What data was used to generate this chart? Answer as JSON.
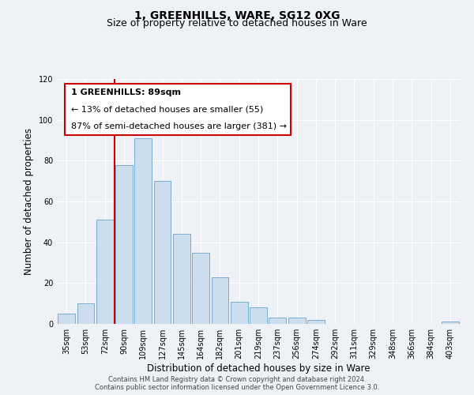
{
  "title": "1, GREENHILLS, WARE, SG12 0XG",
  "subtitle": "Size of property relative to detached houses in Ware",
  "xlabel": "Distribution of detached houses by size in Ware",
  "ylabel": "Number of detached properties",
  "bar_labels": [
    "35sqm",
    "53sqm",
    "72sqm",
    "90sqm",
    "109sqm",
    "127sqm",
    "145sqm",
    "164sqm",
    "182sqm",
    "201sqm",
    "219sqm",
    "237sqm",
    "256sqm",
    "274sqm",
    "292sqm",
    "311sqm",
    "329sqm",
    "348sqm",
    "366sqm",
    "384sqm",
    "403sqm"
  ],
  "bar_values": [
    5,
    10,
    51,
    78,
    91,
    70,
    44,
    35,
    23,
    11,
    8,
    3,
    3,
    2,
    0,
    0,
    0,
    0,
    0,
    0,
    1
  ],
  "bar_color": "#ccdded",
  "bar_edgecolor": "#7aadcf",
  "vline_x_index": 3,
  "vline_color": "#cc0000",
  "annotation_lines": [
    "1 GREENHILLS: 89sqm",
    "← 13% of detached houses are smaller (55)",
    "87% of semi-detached houses are larger (381) →"
  ],
  "ylim": [
    0,
    120
  ],
  "yticks": [
    0,
    20,
    40,
    60,
    80,
    100,
    120
  ],
  "footer_line1": "Contains HM Land Registry data © Crown copyright and database right 2024.",
  "footer_line2": "Contains public sector information licensed under the Open Government Licence 3.0.",
  "bg_color": "#eef2f7",
  "plot_bg_color": "#eef2f7",
  "title_fontsize": 10,
  "subtitle_fontsize": 9,
  "axis_label_fontsize": 8.5,
  "tick_fontsize": 7,
  "annotation_fontsize": 8,
  "footer_fontsize": 6
}
